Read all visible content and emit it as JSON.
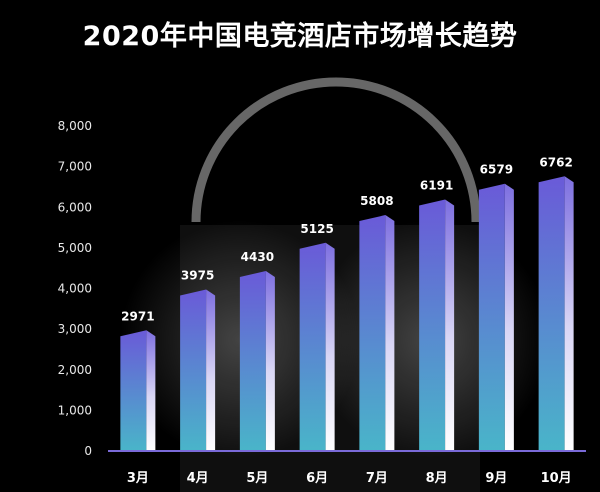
{
  "chart_data": {
    "type": "bar",
    "title": "2020年中国电竞酒店市场增长趋势",
    "categories": [
      "3月",
      "4月",
      "5月",
      "6月",
      "7月",
      "8月",
      "9月",
      "10月"
    ],
    "values": [
      2971,
      3975,
      4430,
      5125,
      5808,
      6191,
      6579,
      6762
    ],
    "xlabel": "",
    "ylabel": "",
    "ylim": [
      0,
      8000
    ],
    "yticks": [
      0,
      1000,
      2000,
      3000,
      4000,
      5000,
      6000,
      7000,
      8000
    ],
    "ytick_labels": [
      "0",
      "1,000",
      "2,000",
      "3,000",
      "4,000",
      "5,000",
      "6,000",
      "7,000",
      "8,000"
    ],
    "grid": false,
    "legend": "none",
    "colors": {
      "background": "#000000",
      "bar_top": "#6a5ad8",
      "bar_bottom": "#4ab0c8",
      "bar_highlight": "#ffffff",
      "axis": "#7a6ad8"
    }
  }
}
